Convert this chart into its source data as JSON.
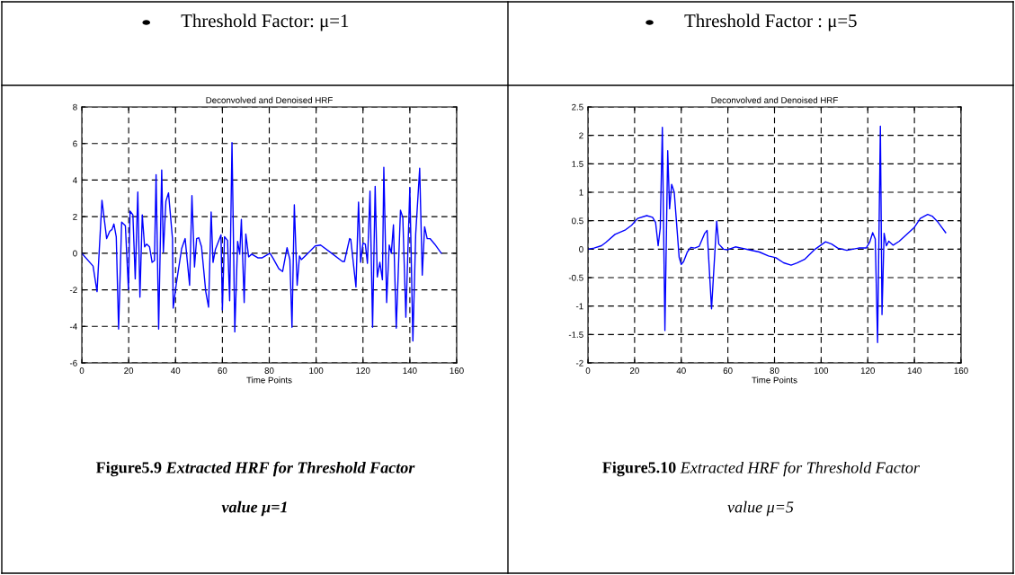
{
  "chart_data": [
    {
      "type": "line",
      "title": "Deconvolved and Denoised HRF",
      "xlabel": "Time Points",
      "color": "#0000ff",
      "grid": true,
      "xlim": [
        0,
        160
      ],
      "ylim": [
        -6,
        8
      ],
      "xticks": [
        0,
        20,
        40,
        60,
        80,
        100,
        120,
        140,
        160
      ],
      "yticks": [
        -6,
        -4,
        -2,
        0,
        2,
        4,
        6,
        8
      ],
      "annotations": [
        "Threshold Factor: μ=1",
        "Figure5.9",
        "Extracted HRF for Threshold Factor",
        "value μ=1"
      ],
      "x": [
        0,
        4.8,
        6.5,
        8.6,
        10.6,
        11.9,
        12.9,
        13.7,
        14.7,
        15.7,
        17,
        18.6,
        19.9,
        20.6,
        21.8,
        22.8,
        23.9,
        24.8,
        25.8,
        26.8,
        27.7,
        28.9,
        30,
        31,
        31.7,
        32.8,
        34.1,
        34.8,
        35.9,
        37,
        38.7,
        39,
        40.3,
        42.6,
        44.1,
        46,
        47,
        48.1,
        49,
        49.9,
        51.1,
        52.9,
        54.1,
        55.2,
        56,
        57,
        59.4,
        60,
        60.9,
        62.2,
        63.1,
        64.1,
        65.3,
        66.5,
        67.4,
        68.1,
        69.3,
        70,
        71.2,
        72.5,
        75.1,
        77,
        80.3,
        81.5,
        84.1,
        85.7,
        87.6,
        88.8,
        89.7,
        90.7,
        91.9,
        92.9,
        93.7,
        95.7,
        99.6,
        101.9,
        106.1,
        111.2,
        112.1,
        113.5,
        114.3,
        114.8,
        117,
        118.1,
        119,
        120,
        121,
        121.9,
        123,
        124.1,
        125.2,
        126.1,
        127.2,
        128.3,
        128.9,
        130.1,
        131.2,
        132.1,
        133,
        134.2,
        136,
        137,
        138.3,
        140,
        141.3,
        142.5,
        144.2,
        145.3,
        146.3,
        147.4,
        148.6,
        150.6,
        153.4
      ],
      "values": [
        0,
        -0.7,
        -2.1,
        2.9,
        0.8,
        1.2,
        1.3,
        1.6,
        0.9,
        -4.15,
        1.7,
        1.5,
        -2,
        2.3,
        2.1,
        -1.4,
        3.35,
        -2.4,
        2.1,
        0.35,
        0.5,
        0.35,
        -0.5,
        -0.4,
        4.3,
        -4.15,
        4.55,
        0.05,
        2.85,
        3.3,
        0.8,
        -3,
        -1.7,
        0.25,
        0.8,
        -1.75,
        3.15,
        -0.75,
        0.8,
        0.85,
        0.35,
        -2.1,
        -2.95,
        2.25,
        -0.5,
        0.2,
        1,
        -3.1,
        0.9,
        0.7,
        -2.6,
        6.05,
        -4.3,
        0.65,
        -0.05,
        1.85,
        -2.7,
        1.05,
        -0.2,
        -0.05,
        -0.25,
        -0.25,
        0,
        -0.25,
        -0.85,
        -1,
        0.3,
        -0.35,
        -4.05,
        2.65,
        -1.75,
        -0.15,
        -0.35,
        -0.1,
        0.4,
        0.45,
        0.05,
        -0.45,
        -0.45,
        0.35,
        0.8,
        0.75,
        -1.85,
        2.8,
        -0.5,
        0.55,
        0.5,
        -0.55,
        3.4,
        -4.05,
        3.65,
        -1.3,
        -0.5,
        -1.45,
        4.7,
        -2.7,
        0.45,
        0,
        1.55,
        -4.1,
        2.35,
        1.95,
        -3.5,
        3.6,
        -4.8,
        1.05,
        4.65,
        -1.2,
        1.45,
        0.8,
        0.8,
        0.5,
        0
      ]
    },
    {
      "type": "line",
      "title": "Deconvolved and Denoised HRF",
      "xlabel": "Time Points",
      "color": "#0000ff",
      "grid": true,
      "xlim": [
        0,
        160
      ],
      "ylim": [
        -2,
        2.5
      ],
      "xticks": [
        0,
        20,
        40,
        60,
        80,
        100,
        120,
        140,
        160
      ],
      "yticks": [
        -2,
        -1.5,
        -1,
        -0.5,
        0,
        0.5,
        1,
        1.5,
        2,
        2.5
      ],
      "annotations": [
        "Threshold Factor : μ=5",
        "Figure5.10",
        "Extracted HRF for Threshold Factor",
        "value μ=5"
      ],
      "x": [
        0,
        2.6,
        5.8,
        7.7,
        11.6,
        16.1,
        18.7,
        21.3,
        25.2,
        27.7,
        29,
        30.1,
        31,
        31.9,
        33,
        34.2,
        35,
        35.9,
        37,
        39.1,
        40,
        41,
        42.6,
        44.1,
        45.8,
        47.7,
        50.1,
        51.1,
        53,
        55.2,
        56.1,
        58.1,
        60,
        63.2,
        65.8,
        69,
        73.5,
        77.4,
        80.6,
        83.9,
        87.1,
        89.7,
        92.9,
        97.4,
        101.9,
        104.5,
        107.1,
        111,
        116.1,
        119.3,
        120.8,
        122.1,
        123.2,
        124.2,
        125.4,
        126.1,
        127,
        128,
        129,
        130.9,
        133.5,
        139.9,
        142.5,
        145.7,
        147.6,
        150.2,
        153.4
      ],
      "values": [
        0,
        0.02,
        0.06,
        0.12,
        0.26,
        0.34,
        0.42,
        0.54,
        0.59,
        0.56,
        0.47,
        0.06,
        0.37,
        2.14,
        -1.43,
        1.73,
        0.71,
        1.14,
        1,
        -0.14,
        -0.27,
        -0.22,
        -0.05,
        0.03,
        0.02,
        0.05,
        0.28,
        0.33,
        -1.05,
        0.49,
        0.09,
        0,
        -0.01,
        0.04,
        0.02,
        -0.01,
        -0.05,
        -0.12,
        -0.15,
        -0.24,
        -0.28,
        -0.24,
        -0.18,
        0,
        0.13,
        0.09,
        0.02,
        -0.02,
        0.02,
        0.02,
        0.12,
        0.29,
        0.18,
        -1.64,
        2.16,
        -1.15,
        0.28,
        0.06,
        0.14,
        0.07,
        0.14,
        0.38,
        0.54,
        0.61,
        0.58,
        0.47,
        0.29
      ]
    }
  ]
}
